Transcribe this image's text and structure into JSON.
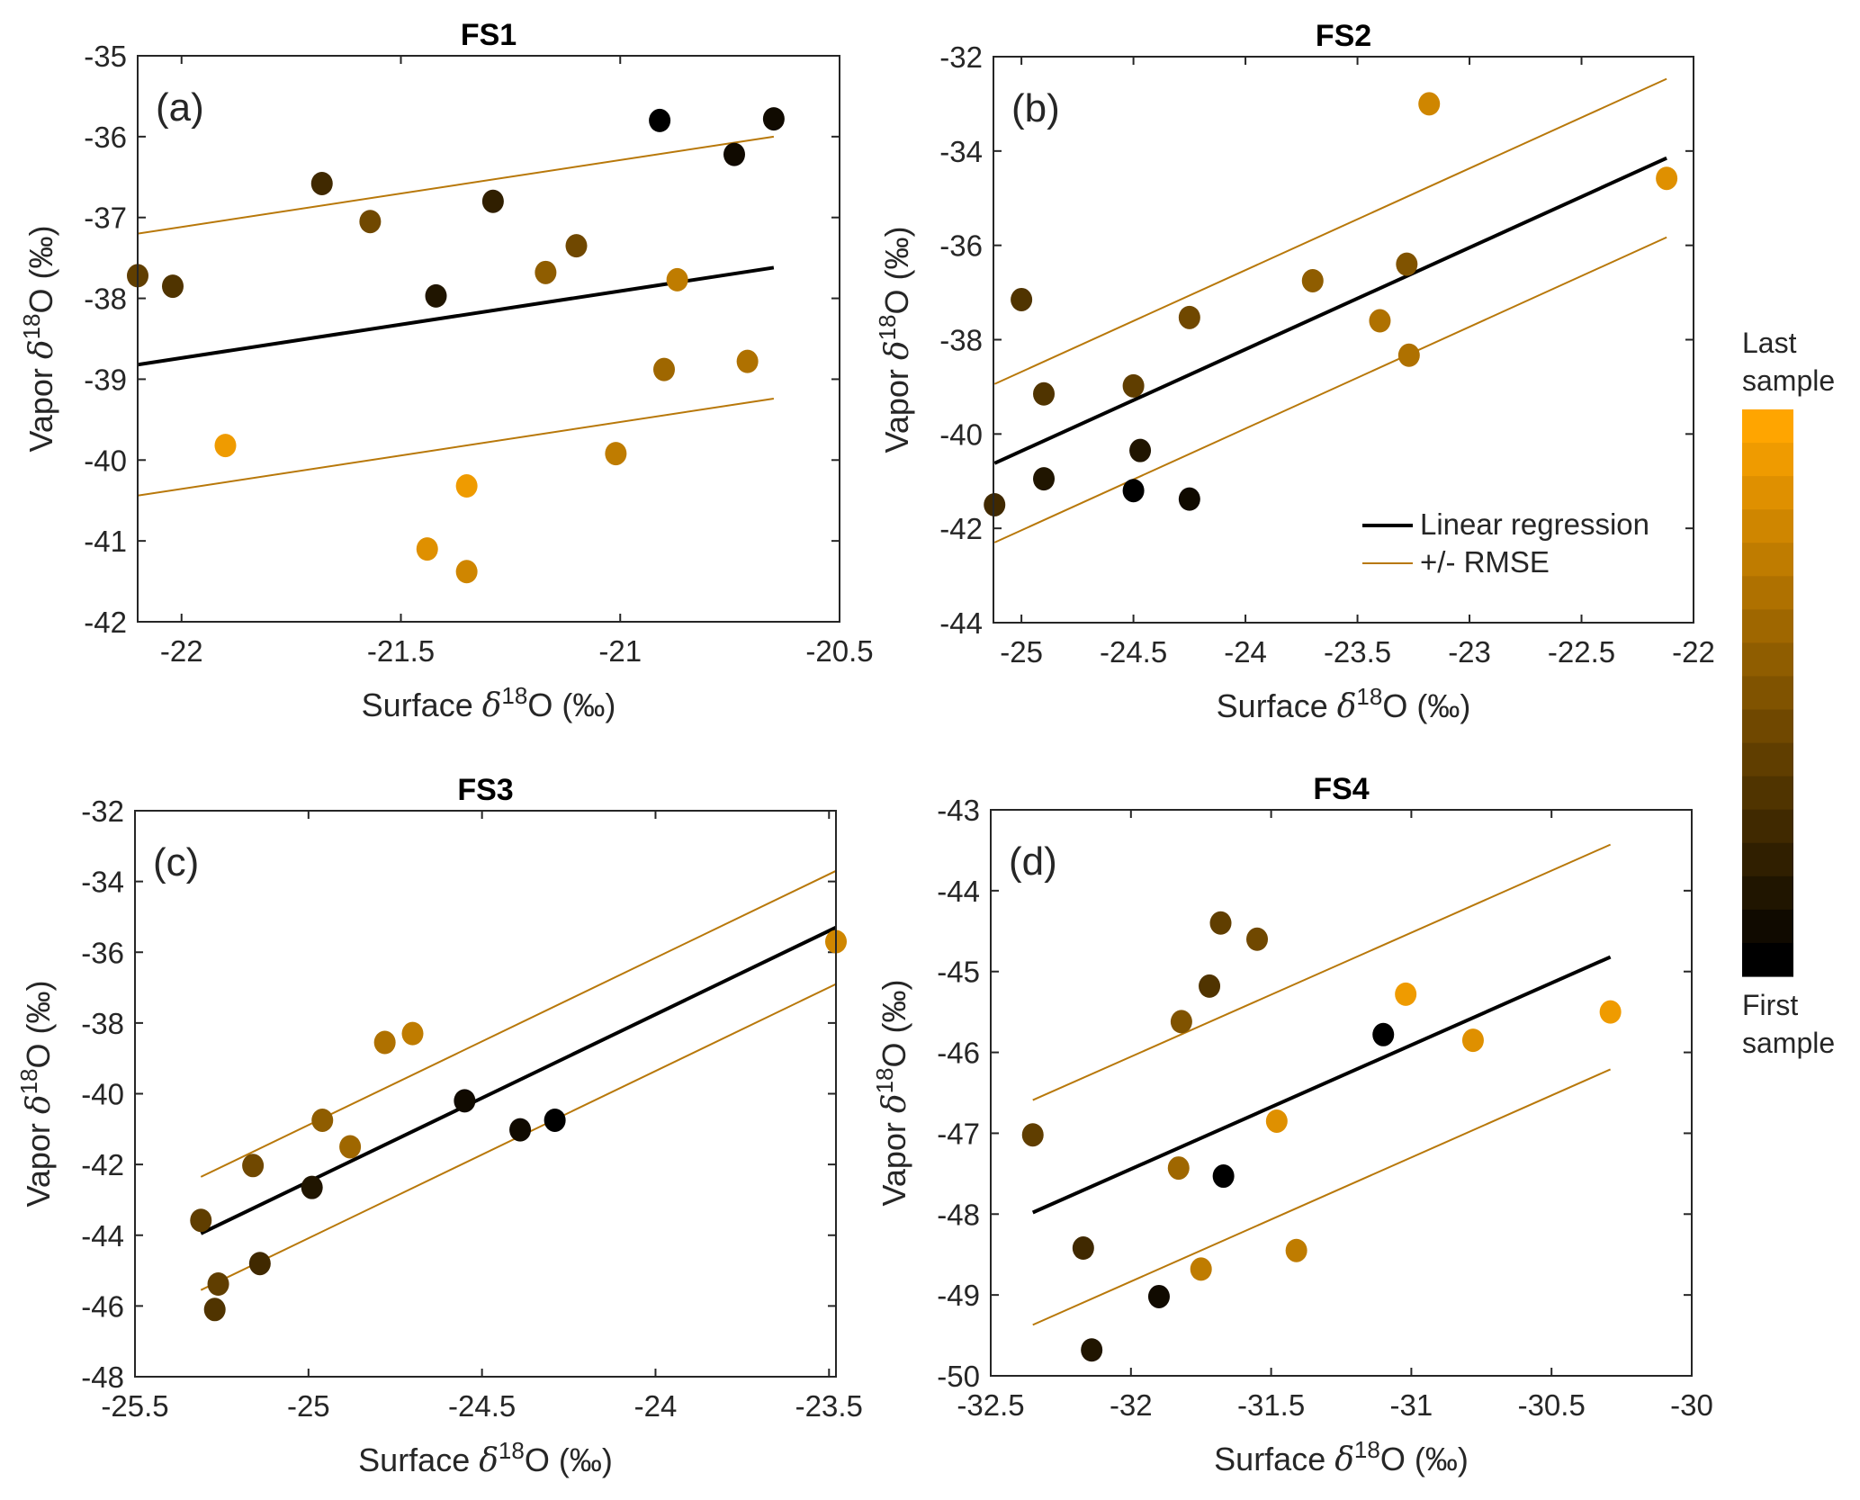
{
  "figure": {
    "colormap": {
      "first_color": "#000000",
      "last_color": "#FFA500",
      "steps": 17
    },
    "regression_color": "#000000",
    "rmse_color": "#B8780A",
    "legend": {
      "regression_label": "Linear regression",
      "rmse_label": "+/- RMSE",
      "location": "panel-b bottom-right"
    },
    "colorbar": {
      "top_label_1": "Last",
      "top_label_2": "sample",
      "bottom_label_1": "First",
      "bottom_label_2": "sample"
    }
  },
  "chart_data": [
    {
      "type": "scatter",
      "title": "FS1",
      "tag": "(a)",
      "xlabel": "Surface δ18O (‰)",
      "ylabel": "Vapor δ18O (‰)",
      "xlim": [
        -22.1,
        -20.5
      ],
      "ylim": [
        -42,
        -35
      ],
      "xticks": [
        -22,
        -21.5,
        -21,
        -20.5
      ],
      "xtick_labels": [
        "-22",
        "-21.5",
        "-21",
        "-20.5"
      ],
      "yticks": [
        -42,
        -41,
        -40,
        -39,
        -38,
        -37,
        -36,
        -35
      ],
      "ytick_labels": [
        "-42",
        "-41",
        "-40",
        "-39",
        "-38",
        "-37",
        "-36",
        "-35"
      ],
      "points": [
        {
          "x": -22.1,
          "y": -37.72,
          "order": 0.38
        },
        {
          "x": -22.02,
          "y": -37.85,
          "order": 0.3
        },
        {
          "x": -21.68,
          "y": -36.58,
          "order": 0.28
        },
        {
          "x": -21.57,
          "y": -37.05,
          "order": 0.45
        },
        {
          "x": -21.42,
          "y": -37.97,
          "order": 0.12
        },
        {
          "x": -21.29,
          "y": -36.8,
          "order": 0.18
        },
        {
          "x": -21.17,
          "y": -37.68,
          "order": 0.55
        },
        {
          "x": -21.1,
          "y": -37.35,
          "order": 0.42
        },
        {
          "x": -20.91,
          "y": -35.8,
          "order": 0.02
        },
        {
          "x": -20.87,
          "y": -37.77,
          "order": 0.72
        },
        {
          "x": -20.9,
          "y": -38.88,
          "order": 0.62
        },
        {
          "x": -20.74,
          "y": -36.22,
          "order": 0.08
        },
        {
          "x": -20.65,
          "y": -35.78,
          "order": 0.05
        },
        {
          "x": -20.71,
          "y": -38.78,
          "order": 0.68
        },
        {
          "x": -21.01,
          "y": -39.92,
          "order": 0.75
        },
        {
          "x": -21.9,
          "y": -39.82,
          "order": 0.96
        },
        {
          "x": -21.35,
          "y": -40.32,
          "order": 0.92
        },
        {
          "x": -21.44,
          "y": -41.1,
          "order": 0.86
        },
        {
          "x": -21.35,
          "y": -41.38,
          "order": 0.82
        }
      ],
      "regression": {
        "x": [
          -22.1,
          -20.65
        ],
        "y": [
          -38.82,
          -37.62
        ]
      },
      "rmse": 1.62,
      "legend": false
    },
    {
      "type": "scatter",
      "title": "FS2",
      "tag": "(b)",
      "xlabel": "Surface δ18O (‰)",
      "ylabel": "Vapor δ18O (‰)",
      "xlim": [
        -25.125,
        -22
      ],
      "ylim": [
        -44,
        -32
      ],
      "xticks": [
        -25,
        -24.5,
        -24,
        -23.5,
        -23,
        -22.5,
        -22
      ],
      "xtick_labels": [
        "-25",
        "-24.5",
        "-24",
        "-23.5",
        "-23",
        "-22.5",
        "-22"
      ],
      "yticks": [
        -44,
        -42,
        -40,
        -38,
        -36,
        -34,
        -32
      ],
      "ytick_labels": [
        "-44",
        "-42",
        "-40",
        "-38",
        "-36",
        "-34",
        "-32"
      ],
      "points": [
        {
          "x": -25.0,
          "y": -37.15,
          "order": 0.3
        },
        {
          "x": -24.9,
          "y": -39.15,
          "order": 0.32
        },
        {
          "x": -24.9,
          "y": -40.95,
          "order": 0.15
        },
        {
          "x": -25.12,
          "y": -41.5,
          "order": 0.22
        },
        {
          "x": -24.5,
          "y": -38.98,
          "order": 0.4
        },
        {
          "x": -24.47,
          "y": -40.35,
          "order": 0.1
        },
        {
          "x": -24.5,
          "y": -41.2,
          "order": 0.02
        },
        {
          "x": -24.25,
          "y": -37.53,
          "order": 0.45
        },
        {
          "x": -24.25,
          "y": -41.38,
          "order": 0.05
        },
        {
          "x": -23.7,
          "y": -36.75,
          "order": 0.55
        },
        {
          "x": -23.28,
          "y": -36.4,
          "order": 0.5
        },
        {
          "x": -23.4,
          "y": -37.6,
          "order": 0.7
        },
        {
          "x": -23.27,
          "y": -38.33,
          "order": 0.68
        },
        {
          "x": -23.18,
          "y": -33.0,
          "order": 0.8
        },
        {
          "x": -22.12,
          "y": -34.58,
          "order": 0.88
        }
      ],
      "regression": {
        "x": [
          -25.12,
          -22.12
        ],
        "y": [
          -40.62,
          -34.15
        ]
      },
      "rmse": 1.68,
      "legend": true
    },
    {
      "type": "scatter",
      "title": "FS3",
      "tag": "(c)",
      "xlabel": "Surface δ18O (‰)",
      "ylabel": "Vapor δ18O (‰)",
      "xlim": [
        -25.5,
        -23.48
      ],
      "ylim": [
        -48,
        -32
      ],
      "xticks": [
        -25.5,
        -25,
        -24.5,
        -24,
        -23.5
      ],
      "xtick_labels": [
        "-25.5",
        "-25",
        "-24.5",
        "-24",
        "-23.5"
      ],
      "yticks": [
        -48,
        -46,
        -44,
        -42,
        -40,
        -38,
        -36,
        -34,
        -32
      ],
      "ytick_labels": [
        "-48",
        "-46",
        "-44",
        "-42",
        "-40",
        "-38",
        "-36",
        "-34",
        "-32"
      ],
      "points": [
        {
          "x": -25.31,
          "y": -43.58,
          "order": 0.4
        },
        {
          "x": -25.27,
          "y": -46.1,
          "order": 0.3
        },
        {
          "x": -25.26,
          "y": -45.38,
          "order": 0.35
        },
        {
          "x": -25.16,
          "y": -42.03,
          "order": 0.45
        },
        {
          "x": -25.14,
          "y": -44.8,
          "order": 0.25
        },
        {
          "x": -24.99,
          "y": -42.65,
          "order": 0.15
        },
        {
          "x": -24.96,
          "y": -40.75,
          "order": 0.55
        },
        {
          "x": -24.88,
          "y": -41.5,
          "order": 0.6
        },
        {
          "x": -24.78,
          "y": -38.55,
          "order": 0.7
        },
        {
          "x": -24.7,
          "y": -38.3,
          "order": 0.75
        },
        {
          "x": -24.55,
          "y": -40.2,
          "order": 0.05
        },
        {
          "x": -24.39,
          "y": -41.02,
          "order": 0.08
        },
        {
          "x": -24.29,
          "y": -40.75,
          "order": 0.03
        },
        {
          "x": -23.48,
          "y": -35.7,
          "order": 0.8
        }
      ],
      "regression": {
        "x": [
          -25.31,
          -23.48
        ],
        "y": [
          -43.95,
          -35.3
        ]
      },
      "rmse": 1.6,
      "legend": false
    },
    {
      "type": "scatter",
      "title": "FS4",
      "tag": "(d)",
      "xlabel": "Surface δ18O (‰)",
      "ylabel": "Vapor δ18O (‰)",
      "xlim": [
        -32.5,
        -30
      ],
      "ylim": [
        -50,
        -43
      ],
      "xticks": [
        -32.5,
        -32,
        -31.5,
        -31,
        -30.5,
        -30
      ],
      "xtick_labels": [
        "-32.5",
        "-32",
        "-31.5",
        "-31",
        "-30.5",
        "-30"
      ],
      "yticks": [
        -50,
        -49,
        -48,
        -47,
        -46,
        -45,
        -44,
        -43
      ],
      "ytick_labels": [
        "-50",
        "-49",
        "-48",
        "-47",
        "-46",
        "-45",
        "-44",
        "-43"
      ],
      "points": [
        {
          "x": -32.35,
          "y": -47.02,
          "order": 0.35
        },
        {
          "x": -32.17,
          "y": -48.42,
          "order": 0.25
        },
        {
          "x": -32.14,
          "y": -49.68,
          "order": 0.15
        },
        {
          "x": -31.9,
          "y": -49.02,
          "order": 0.08
        },
        {
          "x": -31.82,
          "y": -45.62,
          "order": 0.5
        },
        {
          "x": -31.83,
          "y": -47.43,
          "order": 0.6
        },
        {
          "x": -31.72,
          "y": -45.18,
          "order": 0.3
        },
        {
          "x": -31.68,
          "y": -44.4,
          "order": 0.38
        },
        {
          "x": -31.67,
          "y": -47.53,
          "order": 0.03
        },
        {
          "x": -31.55,
          "y": -44.6,
          "order": 0.42
        },
        {
          "x": -31.75,
          "y": -48.68,
          "order": 0.75
        },
        {
          "x": -31.48,
          "y": -46.85,
          "order": 0.88
        },
        {
          "x": -31.41,
          "y": -48.45,
          "order": 0.72
        },
        {
          "x": -31.1,
          "y": -45.78,
          "order": 0.0
        },
        {
          "x": -31.02,
          "y": -45.28,
          "order": 0.92
        },
        {
          "x": -30.78,
          "y": -45.85,
          "order": 0.85
        },
        {
          "x": -30.29,
          "y": -45.5,
          "order": 0.95
        }
      ],
      "regression": {
        "x": [
          -32.35,
          -30.29
        ],
        "y": [
          -47.98,
          -44.82
        ]
      },
      "rmse": 1.39,
      "legend": false
    }
  ]
}
